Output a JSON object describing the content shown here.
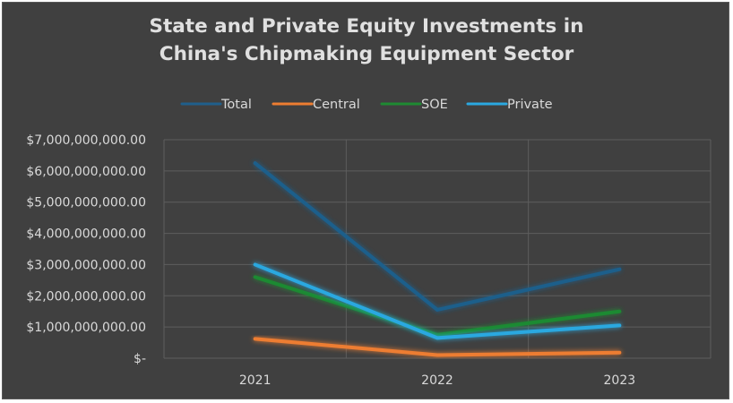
{
  "chart_data": {
    "type": "line",
    "title_lines": [
      "State and Private Equity Investments in",
      "China's Chipmaking Equipment Sector"
    ],
    "categories": [
      "2021",
      "2022",
      "2023"
    ],
    "y_ticks": [
      "$-",
      "$1,000,000,000.00",
      "$2,000,000,000.00",
      "$3,000,000,000.00",
      "$4,000,000,000.00",
      "$5,000,000,000.00",
      "$6,000,000,000.00",
      "$7,000,000,000.00"
    ],
    "ylim": [
      0,
      7000000000
    ],
    "grid": true,
    "legend_position": "top",
    "series": [
      {
        "name": "Total",
        "color": "#1f5f8b",
        "values": [
          6250000000,
          1550000000,
          2850000000
        ]
      },
      {
        "name": "Central",
        "color": "#ed7d31",
        "values": [
          620000000,
          100000000,
          180000000
        ]
      },
      {
        "name": "SOE",
        "color": "#1e8a32",
        "values": [
          2600000000,
          750000000,
          1500000000
        ]
      },
      {
        "name": "Private",
        "color": "#2aa8e0",
        "values": [
          3000000000,
          650000000,
          1050000000
        ]
      }
    ]
  }
}
